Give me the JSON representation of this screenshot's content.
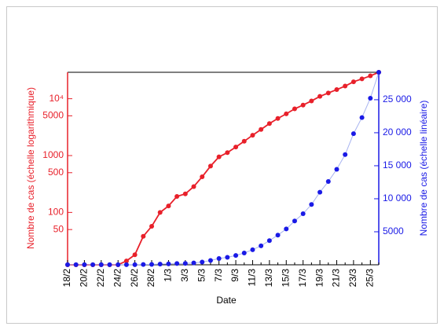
{
  "chart_data": {
    "type": "line",
    "xlabel": "Date",
    "ylabel": "Nombre de cas (échelle logarithmique)",
    "y2label": "Nombre de cas (échelle linéaire)",
    "categories": [
      "18/2",
      null,
      "20/2",
      null,
      "22/2",
      null,
      "24/2",
      null,
      "26/2",
      null,
      "28/2",
      null,
      "1/3",
      null,
      "3/3",
      null,
      "5/3",
      null,
      "7/3",
      null,
      "9/3",
      null,
      "11/3",
      null,
      "13/3",
      null,
      "15/3",
      null,
      "17/3",
      null,
      "19/3",
      null,
      "21/3",
      null,
      "23/3",
      null,
      "25/3",
      null
    ],
    "series": [
      {
        "color": "#e8202a",
        "axis": "y",
        "values": [
          12,
          12,
          12,
          12,
          12,
          12,
          12,
          14,
          18,
          38,
          57,
          100,
          130,
          191,
          212,
          285,
          423,
          653,
          949,
          1126,
          1412,
          1784,
          2281,
          2876,
          3661,
          4499,
          5423,
          6633,
          7730,
          9134,
          10995,
          12612,
          14459,
          16689,
          19856,
          22304,
          25233,
          29155
        ]
      },
      {
        "color": "#1a1ae6",
        "line_color": "#a8b4f0",
        "axis": "y2",
        "values": [
          12,
          12,
          12,
          12,
          12,
          12,
          12,
          14,
          18,
          38,
          57,
          100,
          130,
          191,
          212,
          285,
          423,
          653,
          949,
          1126,
          1412,
          1784,
          2281,
          2876,
          3661,
          4499,
          5423,
          6633,
          7730,
          9134,
          10995,
          12612,
          14459,
          16689,
          19856,
          22304,
          25233,
          29155
        ]
      }
    ],
    "yscale": "log",
    "ylim": [
      12,
      29155
    ],
    "yticks": [
      50,
      100,
      500,
      1000,
      5000,
      {
        "value": 10000,
        "label": "10⁴"
      }
    ],
    "y2lim": [
      0,
      29155
    ],
    "y2ticks": [
      5000,
      {
        "value": 10000,
        "label": "10 000"
      },
      {
        "value": 15000,
        "label": "15 000"
      },
      {
        "value": 20000,
        "label": "20 000"
      },
      {
        "value": 25000,
        "label": "25 000"
      }
    ]
  }
}
